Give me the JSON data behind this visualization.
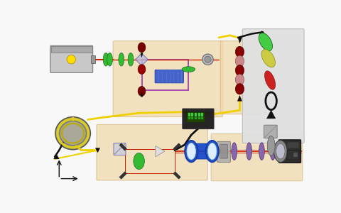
{
  "bg": "#f8f8f8",
  "board": "#f0d8a8",
  "board_edge": "#d4b880",
  "yellow": "#f0d000",
  "red": "#cc2200",
  "purple": "#9933aa",
  "black": "#111111",
  "gray_light": "#cccccc",
  "gray_med": "#999999",
  "blue_dark": "#1144cc",
  "blue_light": "#4488ff",
  "green": "#33bb33",
  "white_panel": "#e8e8e8"
}
